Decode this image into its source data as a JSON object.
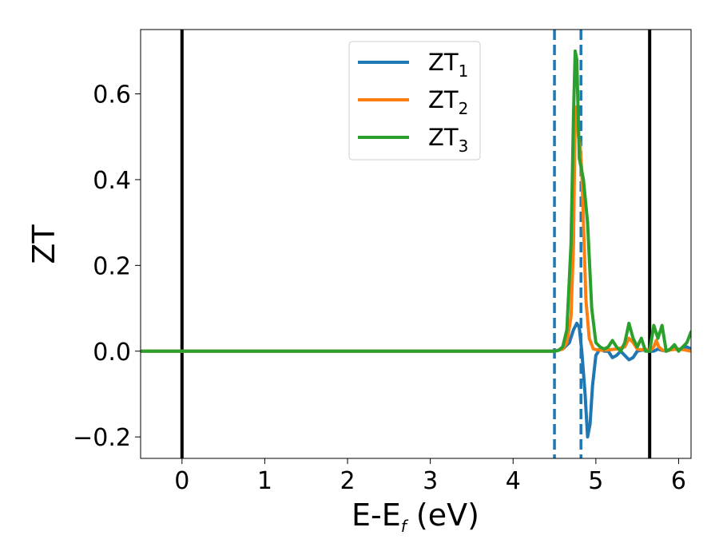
{
  "chart_data": {
    "type": "line",
    "title": "",
    "xlabel": {
      "main": "E-E",
      "sub": "f",
      "suffix": " (eV)"
    },
    "ylabel": "ZT",
    "xlim": [
      -0.5,
      6.15
    ],
    "ylim": [
      -0.25,
      0.75
    ],
    "x_ticks": [
      0,
      1,
      2,
      3,
      4,
      5,
      6
    ],
    "x_tick_labels": [
      "0",
      "1",
      "2",
      "3",
      "4",
      "5",
      "6"
    ],
    "y_ticks": [
      -0.2,
      0.0,
      0.2,
      0.4,
      0.6
    ],
    "y_tick_labels": [
      "−0.2",
      "0.0",
      "0.2",
      "0.4",
      "0.6"
    ],
    "grid": false,
    "legend_position": "top-center",
    "vertical_lines": [
      {
        "x": 0.0,
        "style": "solid",
        "color": "#000000"
      },
      {
        "x": 5.65,
        "style": "solid",
        "color": "#000000"
      },
      {
        "x": 4.5,
        "style": "dashed",
        "color": "#1f77b4"
      },
      {
        "x": 4.82,
        "style": "dashed",
        "color": "#1f77b4"
      }
    ],
    "series": [
      {
        "name": "ZT",
        "subscript": "1",
        "color": "#1f77b4",
        "x": [
          -0.5,
          4.5,
          4.6,
          4.68,
          4.73,
          4.77,
          4.8,
          4.83,
          4.87,
          4.9,
          4.93,
          4.96,
          5.0,
          5.05,
          5.1,
          5.15,
          5.2,
          5.25,
          5.3,
          5.35,
          5.4,
          5.45,
          5.5,
          5.55,
          5.6,
          5.65,
          5.7,
          5.75,
          5.8,
          5.85,
          5.9,
          5.95,
          6.0,
          6.05,
          6.1,
          6.15
        ],
        "y": [
          0.0,
          0.0,
          0.005,
          0.02,
          0.05,
          0.065,
          0.055,
          0.0,
          -0.1,
          -0.2,
          -0.17,
          -0.08,
          -0.01,
          0.005,
          0.0,
          0.0,
          -0.015,
          -0.01,
          0.0,
          -0.01,
          -0.02,
          -0.015,
          0.0,
          0.002,
          0.003,
          0.0,
          0.0,
          0.005,
          0.002,
          0.0,
          0.003,
          0.005,
          0.003,
          0.008,
          0.01,
          0.005
        ]
      },
      {
        "name": "ZT",
        "subscript": "2",
        "color": "#ff7f0e",
        "x": [
          -0.5,
          4.5,
          4.6,
          4.65,
          4.7,
          4.73,
          4.75,
          4.77,
          4.79,
          4.81,
          4.83,
          4.85,
          4.88,
          4.92,
          4.97,
          5.05,
          5.15,
          5.25,
          5.35,
          5.4,
          5.45,
          5.5,
          5.55,
          5.6,
          5.65,
          5.7,
          5.73,
          5.76,
          5.8,
          5.85,
          5.9,
          6.0,
          6.1,
          6.15
        ],
        "y": [
          0.0,
          0.0,
          0.005,
          0.02,
          0.08,
          0.25,
          0.55,
          0.57,
          0.5,
          0.48,
          0.42,
          0.3,
          0.12,
          0.03,
          0.005,
          0.002,
          0.003,
          0.005,
          0.01,
          0.03,
          0.02,
          0.005,
          0.003,
          0.005,
          0.0,
          0.01,
          0.025,
          0.01,
          0.003,
          0.0,
          0.003,
          0.005,
          0.002,
          0.0
        ]
      },
      {
        "name": "ZT",
        "subscript": "3",
        "color": "#2ca02c",
        "x": [
          -0.5,
          4.5,
          4.55,
          4.6,
          4.65,
          4.7,
          4.73,
          4.75,
          4.77,
          4.8,
          4.85,
          4.9,
          4.95,
          5.0,
          5.05,
          5.1,
          5.15,
          5.2,
          5.25,
          5.3,
          5.35,
          5.4,
          5.45,
          5.5,
          5.55,
          5.6,
          5.65,
          5.7,
          5.75,
          5.8,
          5.85,
          5.9,
          5.95,
          6.0,
          6.05,
          6.1,
          6.15
        ],
        "y": [
          0.0,
          0.0,
          0.002,
          0.01,
          0.05,
          0.25,
          0.55,
          0.7,
          0.68,
          0.45,
          0.4,
          0.3,
          0.1,
          0.02,
          0.01,
          0.005,
          0.01,
          0.025,
          0.01,
          0.0,
          0.02,
          0.065,
          0.03,
          0.01,
          0.03,
          0.0,
          0.0,
          0.06,
          0.03,
          0.06,
          0.0,
          0.005,
          0.015,
          0.0,
          0.01,
          0.02,
          0.045
        ]
      }
    ]
  }
}
